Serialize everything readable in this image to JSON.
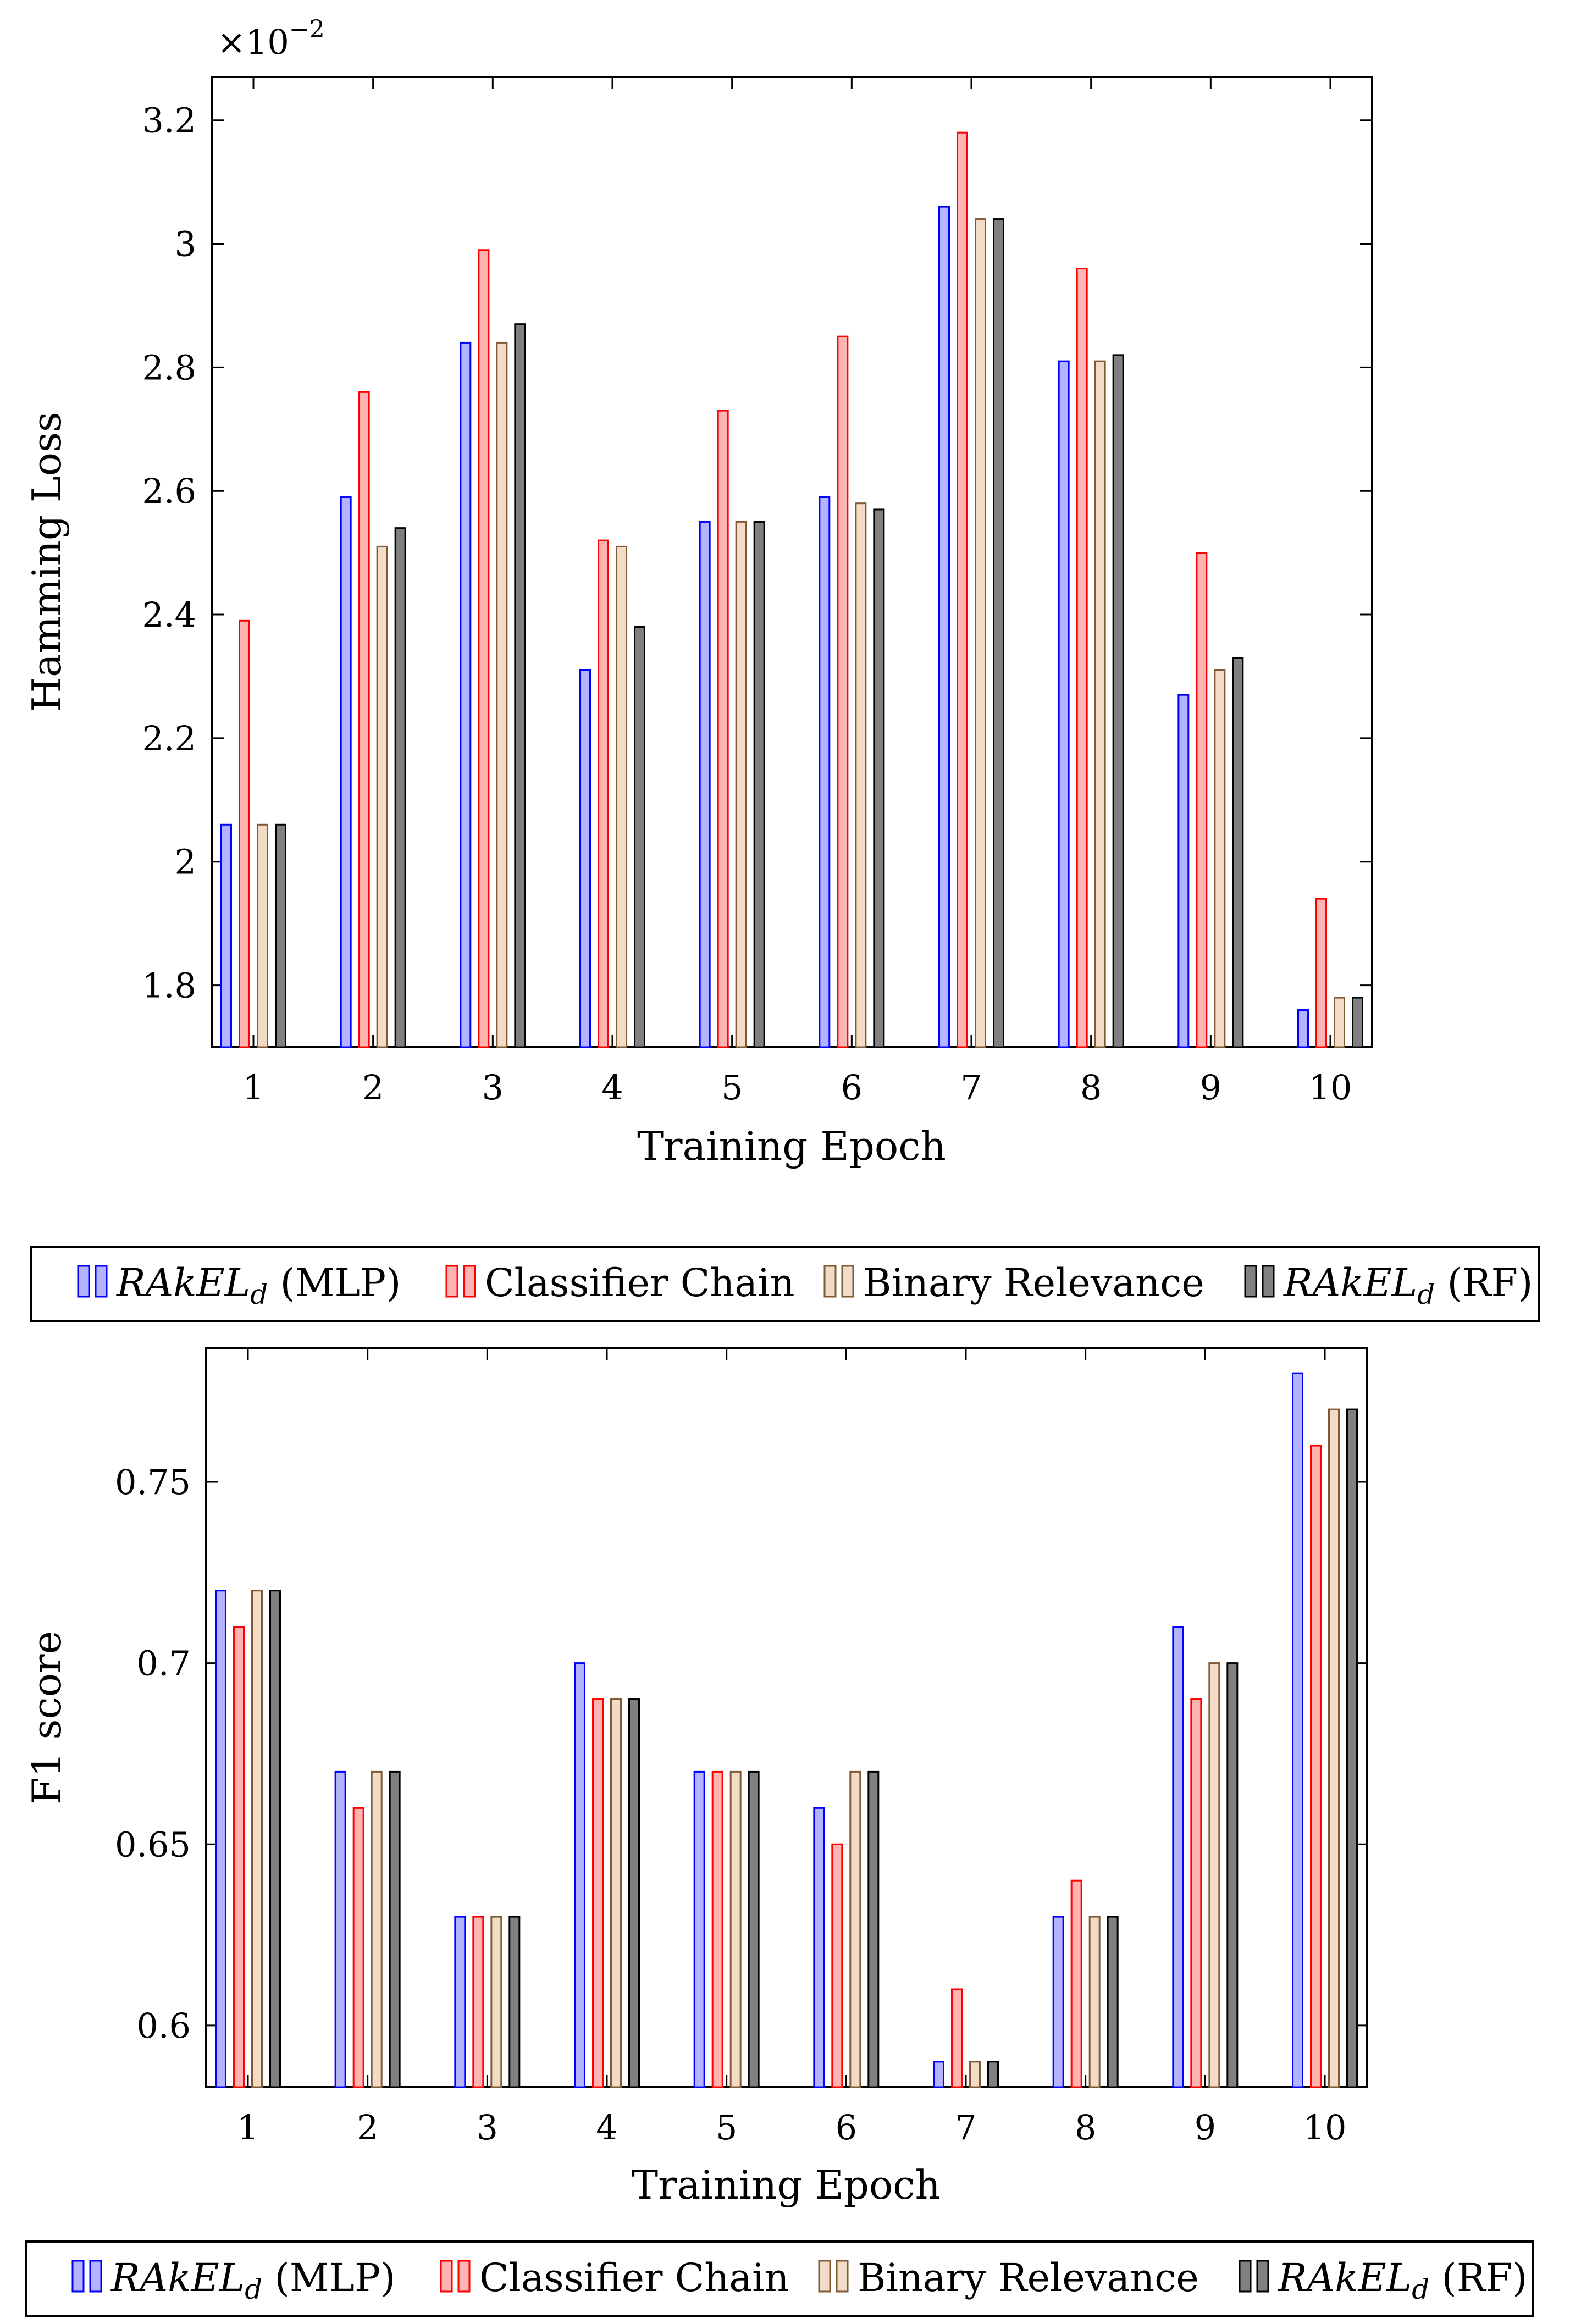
{
  "chart_data": [
    {
      "type": "bar",
      "categories": [
        "1",
        "2",
        "3",
        "4",
        "5",
        "6",
        "7",
        "8",
        "9",
        "10"
      ],
      "xlabel": "Training Epoch",
      "ylabel": "Hamming Loss",
      "scale_note": "×10",
      "scale_exp": "−2",
      "ylim": [
        1.7,
        3.27
      ],
      "yticks": [
        1.8,
        2.0,
        2.2,
        2.4,
        2.6,
        2.8,
        3.0,
        3.2
      ],
      "ytick_labels": [
        "1.8",
        "2",
        "2.2",
        "2.4",
        "2.6",
        "2.8",
        "3",
        "3.2"
      ],
      "series": [
        {
          "name": "RAkEL_d (MLP)",
          "values": [
            2.06,
            2.59,
            2.84,
            2.31,
            2.55,
            2.59,
            3.06,
            2.81,
            2.27,
            1.76
          ]
        },
        {
          "name": "Classifier Chain",
          "values": [
            2.39,
            2.76,
            2.99,
            2.52,
            2.73,
            2.85,
            3.18,
            2.96,
            2.5,
            1.94
          ]
        },
        {
          "name": "Binary Relevance",
          "values": [
            2.06,
            2.51,
            2.84,
            2.51,
            2.55,
            2.58,
            3.04,
            2.81,
            2.31,
            1.78
          ]
        },
        {
          "name": "RAkEL_d (RF)",
          "values": [
            2.06,
            2.54,
            2.87,
            2.38,
            2.55,
            2.57,
            3.04,
            2.82,
            2.33,
            1.78
          ]
        }
      ]
    },
    {
      "type": "bar",
      "categories": [
        "1",
        "2",
        "3",
        "4",
        "5",
        "6",
        "7",
        "8",
        "9",
        "10"
      ],
      "xlabel": "Training Epoch",
      "ylabel": "F1 score",
      "ylim": [
        0.583,
        0.787
      ],
      "yticks": [
        0.6,
        0.65,
        0.7,
        0.75
      ],
      "ytick_labels": [
        "0.6",
        "0.65",
        "0.7",
        "0.75"
      ],
      "series": [
        {
          "name": "RAkEL_d (MLP)",
          "values": [
            0.72,
            0.67,
            0.63,
            0.7,
            0.67,
            0.66,
            0.59,
            0.63,
            0.71,
            0.78
          ]
        },
        {
          "name": "Classifier Chain",
          "values": [
            0.71,
            0.66,
            0.63,
            0.69,
            0.67,
            0.65,
            0.61,
            0.64,
            0.69,
            0.76
          ]
        },
        {
          "name": "Binary Relevance",
          "values": [
            0.72,
            0.67,
            0.63,
            0.69,
            0.67,
            0.67,
            0.59,
            0.63,
            0.7,
            0.77
          ]
        },
        {
          "name": "RAkEL_d (RF)",
          "values": [
            0.72,
            0.67,
            0.63,
            0.69,
            0.67,
            0.67,
            0.59,
            0.63,
            0.7,
            0.77
          ]
        }
      ]
    }
  ],
  "legend": {
    "items": [
      {
        "base": "RAkEL",
        "sub": "d",
        "suffix": " (MLP)",
        "italic": true
      },
      {
        "base": "Classifier Chain",
        "sub": "",
        "suffix": "",
        "italic": false
      },
      {
        "base": "Binary Relevance",
        "sub": "",
        "suffix": "",
        "italic": false
      },
      {
        "base": "RAkEL",
        "sub": "d",
        "suffix": " (RF)",
        "italic": true
      }
    ]
  },
  "colors": {
    "mlp": {
      "fill": "#b3b3ff",
      "stroke": "#0000ff"
    },
    "cc": {
      "fill": "#ffb3b3",
      "stroke": "#ff0000"
    },
    "br": {
      "fill": "#f2dcc8",
      "stroke": "#7f5a33"
    },
    "rf": {
      "fill": "#808080",
      "stroke": "#000000"
    }
  }
}
